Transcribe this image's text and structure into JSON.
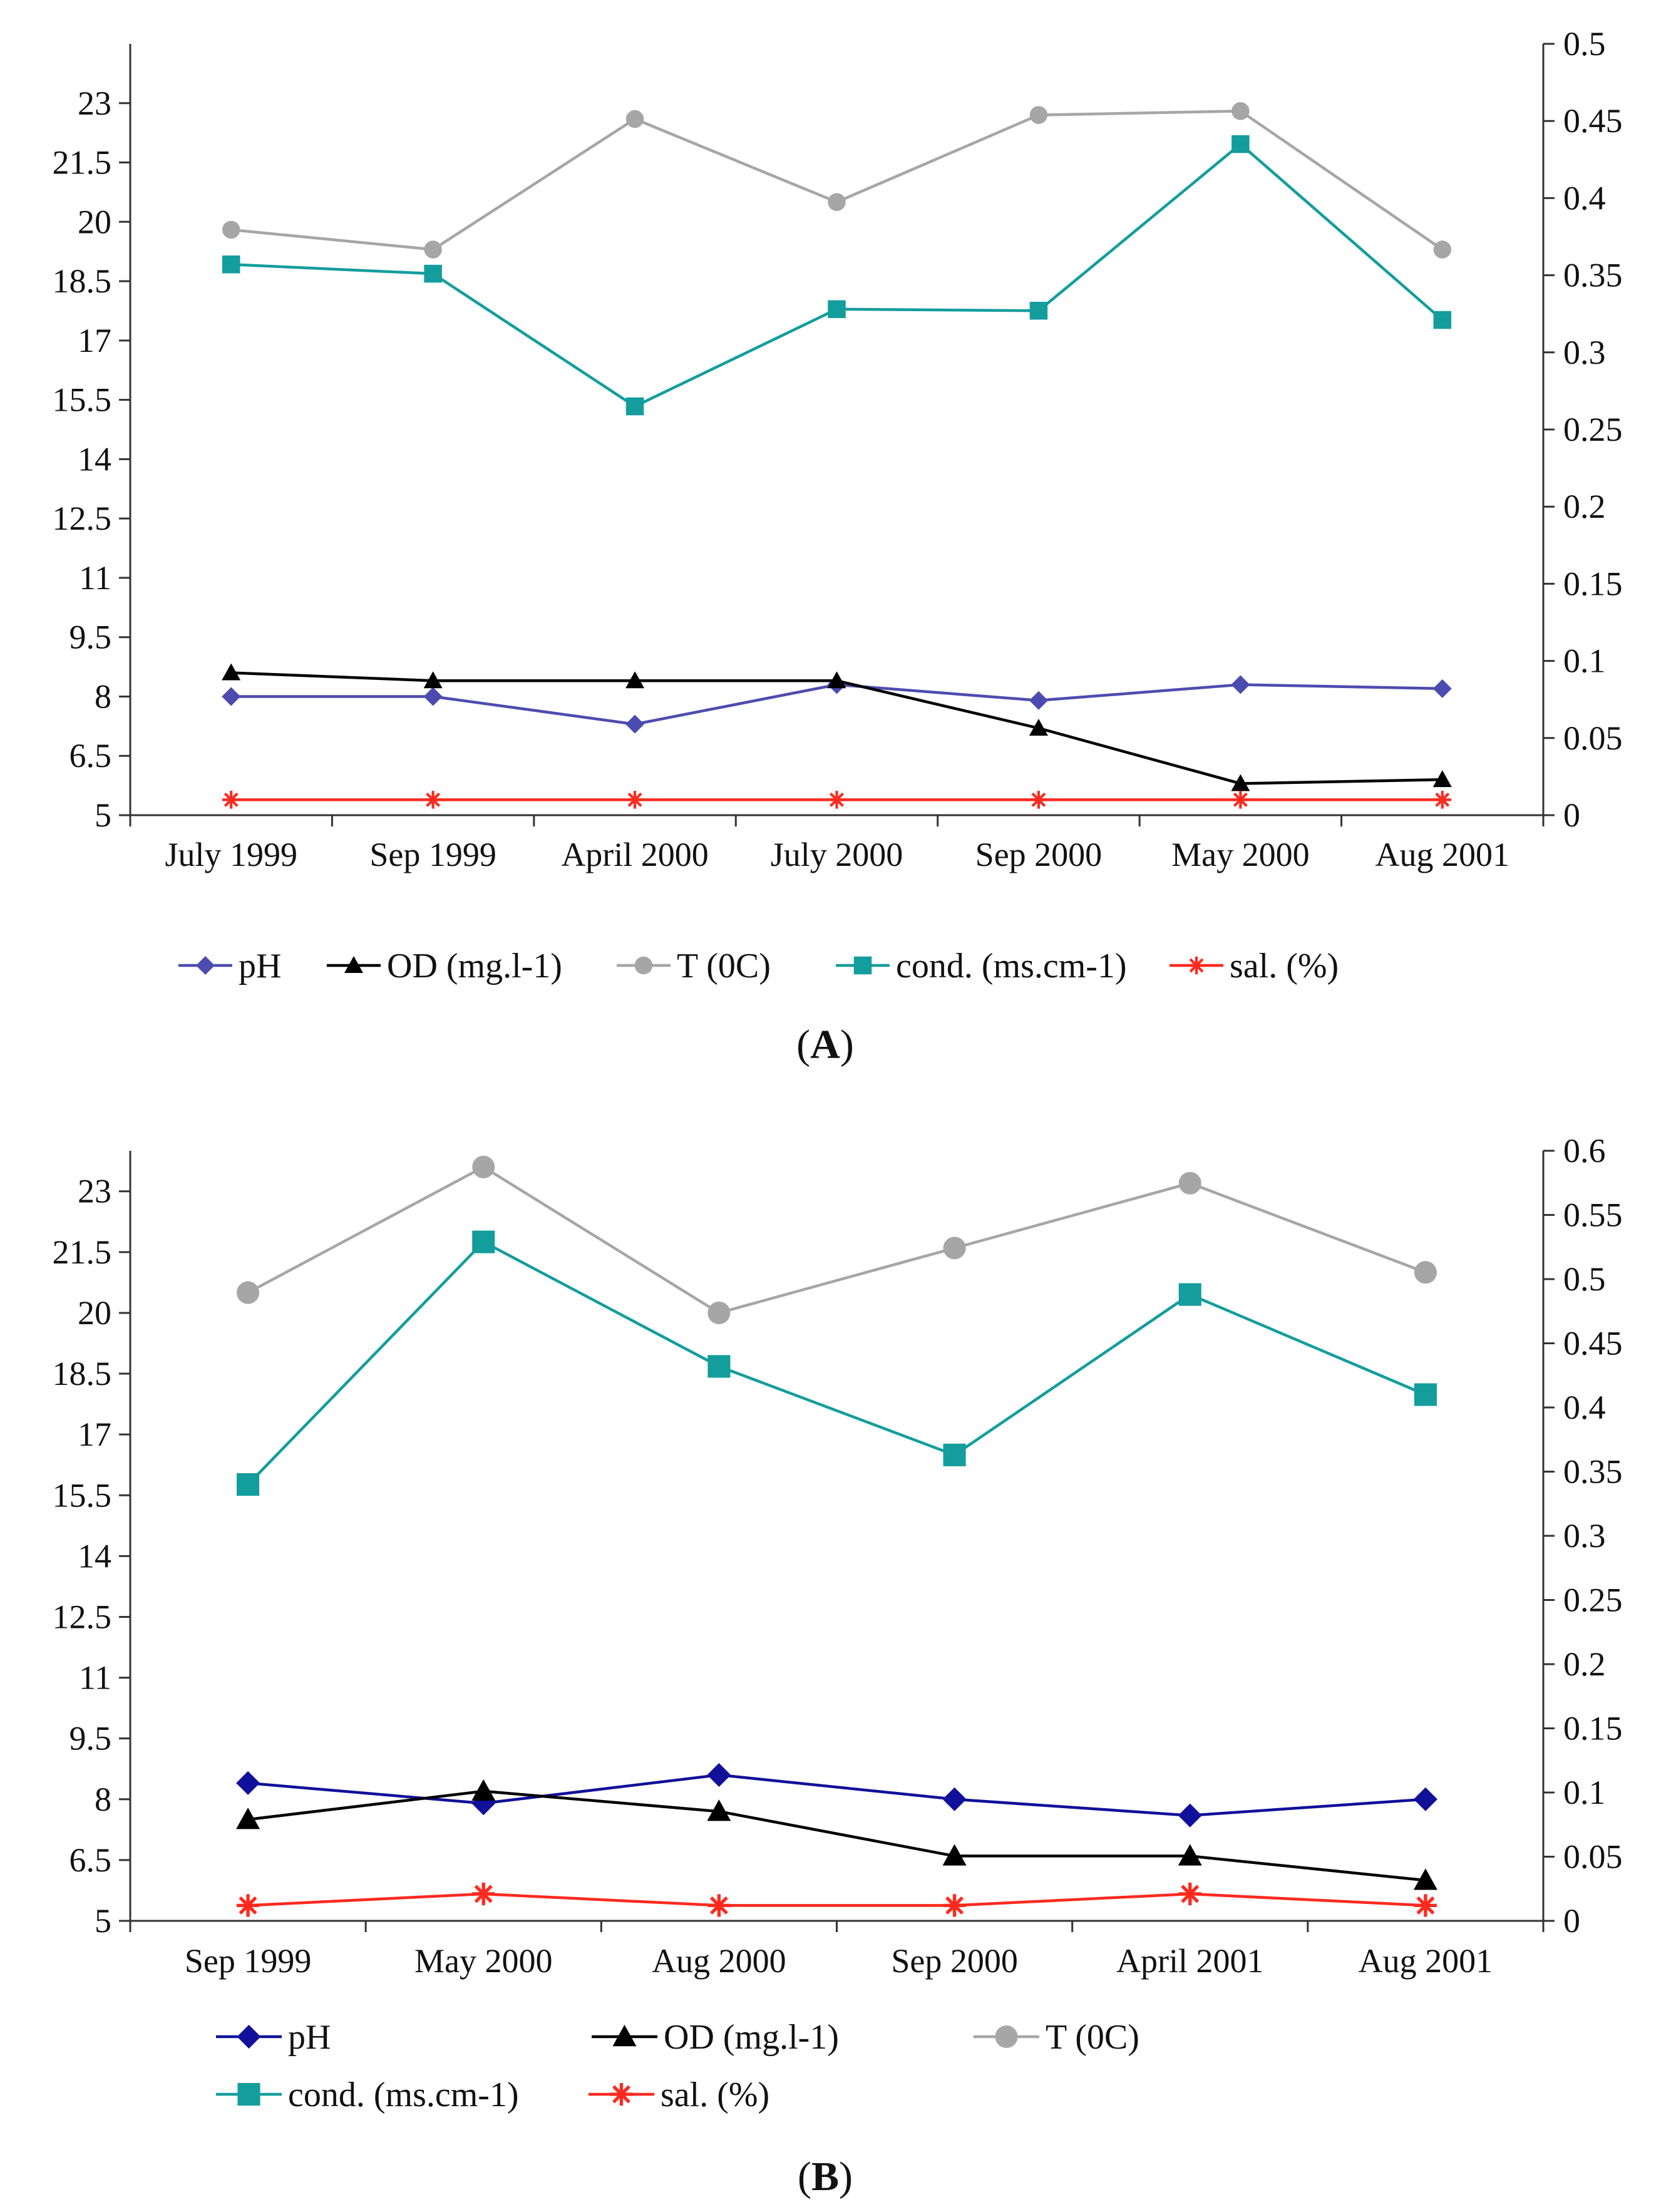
{
  "chart_data": [
    {
      "type": "line",
      "panel_label": "A",
      "categories": [
        "July 1999",
        "Sep 1999",
        "April 2000",
        "July 2000",
        "Sep 2000",
        "May 2000",
        "Aug 2001"
      ],
      "left_axis": {
        "ylim": [
          5,
          24.5
        ],
        "ticks": [
          5,
          6.5,
          8,
          9.5,
          11,
          12.5,
          14,
          15.5,
          17,
          18.5,
          20,
          21.5,
          23
        ],
        "tick_labels": [
          "5",
          "6.5",
          "8",
          "9.5",
          "11",
          "12.5",
          "14",
          "15.5",
          "17",
          "18.5",
          "20",
          "21.5",
          "23"
        ]
      },
      "right_axis": {
        "ylim": [
          0,
          0.5
        ],
        "ticks": [
          0,
          0.05,
          0.1,
          0.15,
          0.2,
          0.25,
          0.3,
          0.35,
          0.4,
          0.45,
          0.5
        ],
        "tick_labels": [
          "0",
          "0.05",
          "0.1",
          "0.15",
          "0.2",
          "0.25",
          "0.3",
          "0.35",
          "0.4",
          "0.45",
          "0.5"
        ]
      },
      "series": [
        {
          "name": "pH",
          "axis": "left",
          "color": "#4c4cb0",
          "marker": "diamond",
          "values": [
            8.0,
            8.0,
            7.3,
            8.3,
            7.9,
            8.3,
            8.2
          ]
        },
        {
          "name": "OD (mg.l-1)",
          "axis": "left",
          "color": "#000000",
          "marker": "triangle",
          "values": [
            8.6,
            8.4,
            8.4,
            8.4,
            7.2,
            5.8,
            5.9
          ]
        },
        {
          "name": "T (0C)",
          "axis": "left",
          "color": "#a6a6a6",
          "marker": "circle",
          "values": [
            19.8,
            19.3,
            22.6,
            20.5,
            22.7,
            22.8,
            19.3
          ]
        },
        {
          "name": "cond. (ms.cm-1)",
          "axis": "right",
          "color": "#139d9d",
          "marker": "square",
          "values": [
            0.357,
            0.351,
            0.265,
            0.328,
            0.327,
            0.435,
            0.321
          ]
        },
        {
          "name": "sal. (%)",
          "axis": "right",
          "color": "#ff2a1f",
          "marker": "star",
          "values": [
            0.01,
            0.01,
            0.01,
            0.01,
            0.01,
            0.01,
            0.01
          ]
        }
      ]
    },
    {
      "type": "line",
      "panel_label": "B",
      "categories": [
        "Sep 1999",
        "May 2000",
        "Aug 2000",
        "Sep 2000",
        "April 2001",
        "Aug 2001"
      ],
      "left_axis": {
        "ylim": [
          5,
          24
        ],
        "ticks": [
          5,
          6.5,
          8,
          9.5,
          11,
          12.5,
          14,
          15.5,
          17,
          18.5,
          20,
          21.5,
          23
        ],
        "tick_labels": [
          "5",
          "6.5",
          "8",
          "9.5",
          "11",
          "12.5",
          "14",
          "15.5",
          "17",
          "18.5",
          "20",
          "21.5",
          "23"
        ]
      },
      "right_axis": {
        "ylim": [
          0,
          0.6
        ],
        "ticks": [
          0,
          0.05,
          0.1,
          0.15,
          0.2,
          0.25,
          0.3,
          0.35,
          0.4,
          0.45,
          0.5,
          0.55,
          0.6
        ],
        "tick_labels": [
          "0",
          "0.05",
          "0.1",
          "0.15",
          "0.2",
          "0.25",
          "0.3",
          "0.35",
          "0.4",
          "0.45",
          "0.5",
          "0.55",
          "0.6"
        ]
      },
      "series": [
        {
          "name": "pH",
          "axis": "left",
          "color": "#10109a",
          "marker": "diamond",
          "values": [
            8.4,
            7.9,
            8.6,
            8.0,
            7.6,
            8.0
          ]
        },
        {
          "name": "OD (mg.l-1)",
          "axis": "left",
          "color": "#000000",
          "marker": "triangle",
          "values": [
            7.5,
            8.2,
            7.7,
            6.6,
            6.6,
            6.0
          ]
        },
        {
          "name": "T (0C)",
          "axis": "left",
          "color": "#a6a6a6",
          "marker": "circle",
          "values": [
            20.5,
            23.6,
            20.0,
            21.6,
            23.2,
            21.0
          ]
        },
        {
          "name": "cond. (ms.cm-1)",
          "axis": "right",
          "color": "#139d9d",
          "marker": "square",
          "values": [
            0.34,
            0.529,
            0.432,
            0.363,
            0.488,
            0.41
          ]
        },
        {
          "name": "sal. (%)",
          "axis": "right",
          "color": "#ff2a1f",
          "marker": "star",
          "values": [
            0.012,
            0.021,
            0.012,
            0.012,
            0.021,
            0.012
          ]
        }
      ]
    }
  ]
}
